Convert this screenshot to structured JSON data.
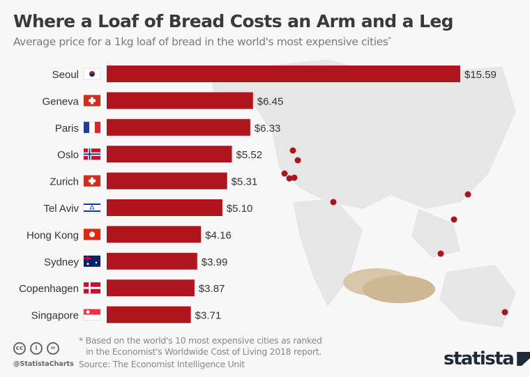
{
  "title": "Where a Loaf of Bread Costs an Arm and a Leg",
  "subtitle": "Average price for a 1kg loaf of bread in the world's most expensive cities",
  "subtitle_marker": "*",
  "colors": {
    "bar": "#b0141c",
    "map": "#e4e4e4",
    "dot": "#a8151c"
  },
  "chart_data": {
    "type": "bar",
    "orientation": "horizontal",
    "categories": [
      "Seoul",
      "Geneva",
      "Paris",
      "Oslo",
      "Zurich",
      "Tel Aviv",
      "Hong Kong",
      "Sydney",
      "Copenhagen",
      "Singapore"
    ],
    "values": [
      15.59,
      6.45,
      6.33,
      5.52,
      5.31,
      5.1,
      4.16,
      3.99,
      3.87,
      3.71
    ],
    "value_labels": [
      "$15.59",
      "$6.45",
      "$6.33",
      "$5.52",
      "$5.31",
      "$5.10",
      "$4.16",
      "$3.99",
      "$3.87",
      "$3.71"
    ],
    "flags": [
      "south-korea",
      "switzerland",
      "france",
      "norway",
      "switzerland",
      "israel",
      "hong-kong",
      "australia",
      "denmark",
      "singapore"
    ],
    "xlim": [
      0,
      15.59
    ],
    "grid": false
  },
  "footer": {
    "note_line1": "* Based on the world's 10 most expensive cities as ranked",
    "note_line2": "in the Economist's Worldwide Cost of Living 2018 report.",
    "source": "Source: The Economist Intelligence Unit",
    "handle": "@StatistaCharts",
    "license_icons": [
      "cc",
      "by",
      "nd"
    ],
    "logo": "statista"
  }
}
